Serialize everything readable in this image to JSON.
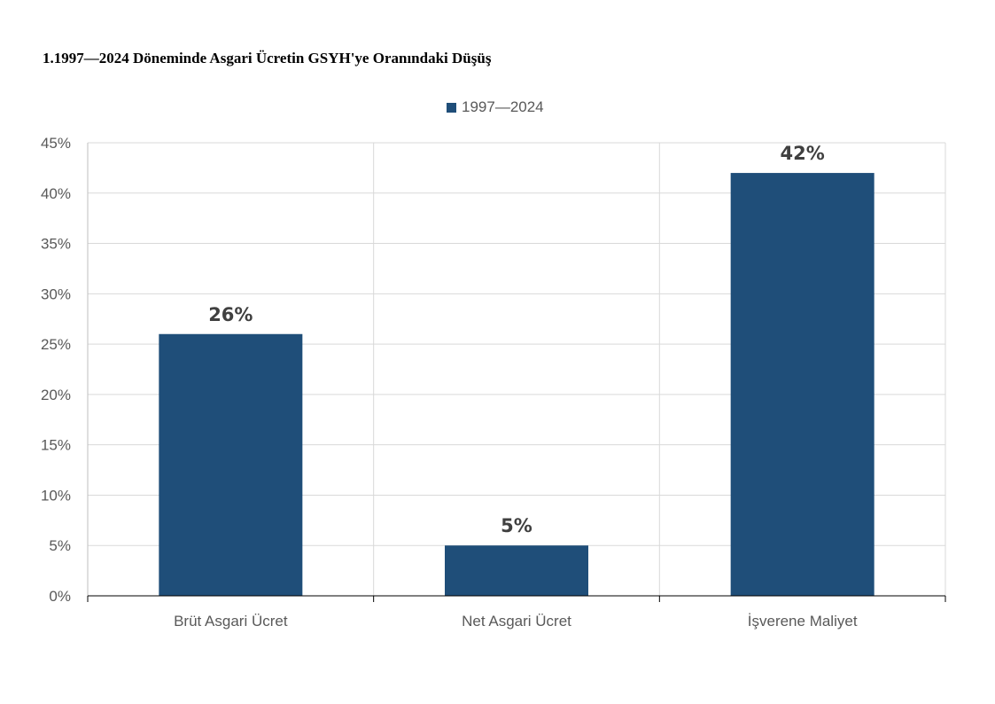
{
  "chart_data": {
    "type": "bar",
    "title": "1.1997—2024 Döneminde Asgari Ücretin GSYH'ye Oranındaki Düşüş",
    "categories": [
      "Brüt Asgari Ücret",
      "Net Asgari Ücret",
      "İşverene Maliyet"
    ],
    "series": [
      {
        "name": "1997—2024",
        "values": [
          26,
          5,
          42
        ],
        "data_labels": [
          "26%",
          "5%",
          "42%"
        ],
        "color": "#1F4E79"
      }
    ],
    "ylim": [
      0,
      45
    ],
    "yticks": [
      0,
      5,
      10,
      15,
      20,
      25,
      30,
      35,
      40,
      45
    ],
    "ytick_labels": [
      "0%",
      "5%",
      "10%",
      "15%",
      "20%",
      "25%",
      "30%",
      "35%",
      "40%",
      "45%"
    ],
    "xlabel": "",
    "ylabel": "",
    "grid": true,
    "legend_position": "top-center"
  }
}
